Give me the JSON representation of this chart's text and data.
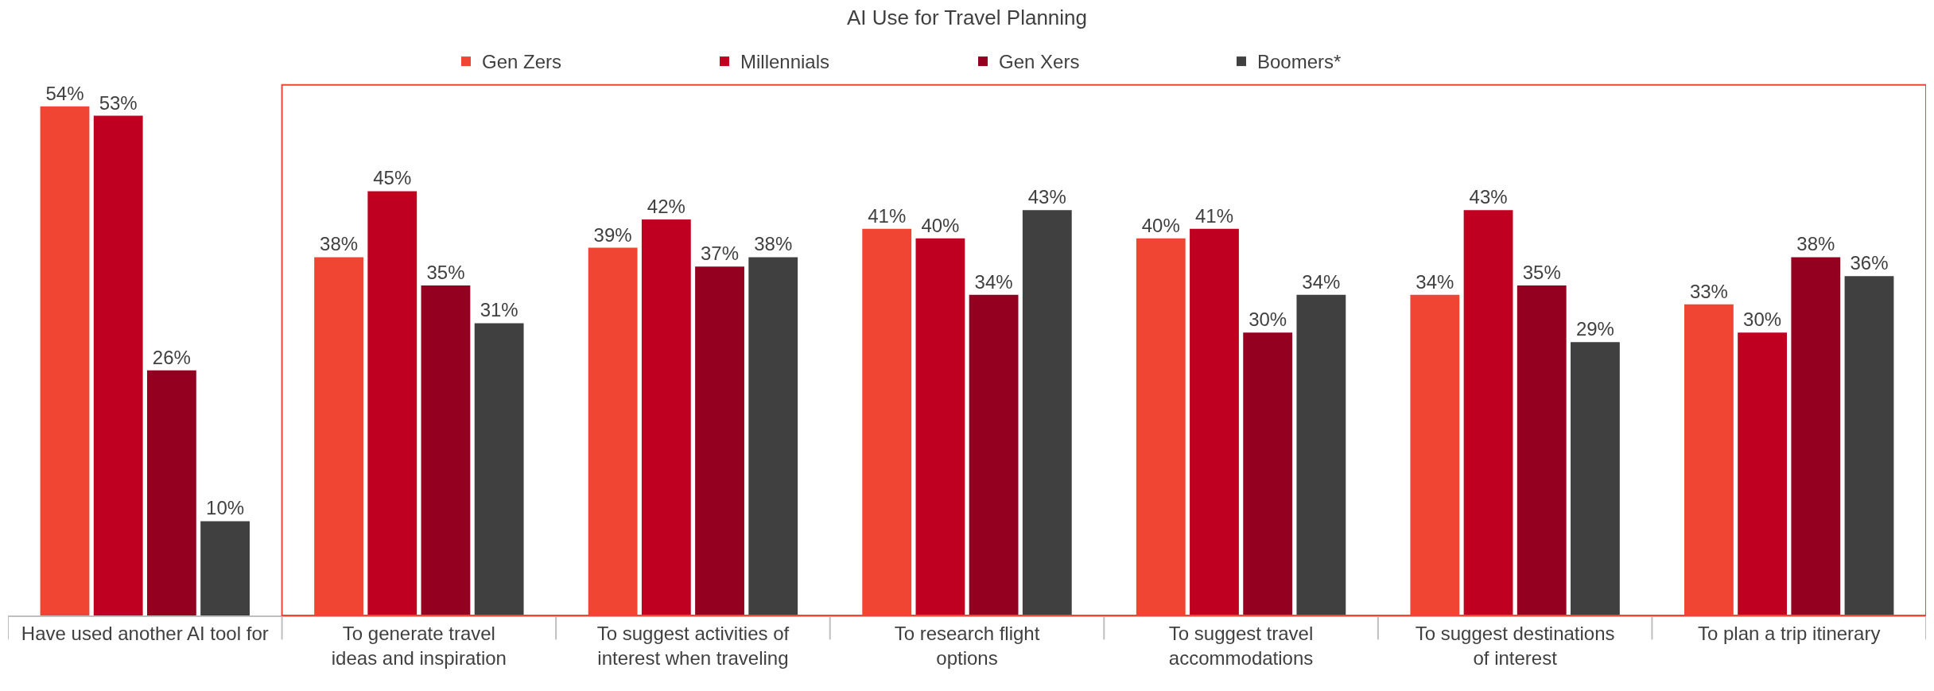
{
  "chart_data": {
    "type": "bar",
    "title": "AI Use for Travel Planning",
    "categories": [
      "Have used another AI tool for",
      "To generate travel\nideas and inspiration",
      "To suggest activities of\ninterest when traveling",
      "To research flight\noptions",
      "To suggest travel\naccommodations",
      "To suggest destinations\nof interest",
      "To plan a trip itinerary"
    ],
    "series": [
      {
        "name": "Gen Zers",
        "color": "#f04533",
        "values": [
          54,
          38,
          39,
          41,
          40,
          34,
          33
        ],
        "value_labels": [
          "54%",
          "38%",
          "39%",
          "41%",
          "40%",
          "34%",
          "33%"
        ]
      },
      {
        "name": "Millennials",
        "color": "#c00020",
        "values": [
          53,
          45,
          42,
          40,
          41,
          43,
          30
        ],
        "value_labels": [
          "53%",
          "45%",
          "42%",
          "40%",
          "41%",
          "43%",
          "30%"
        ]
      },
      {
        "name": "Gen Xers",
        "color": "#940020",
        "values": [
          26,
          35,
          37,
          34,
          30,
          35,
          38
        ],
        "value_labels": [
          "26%",
          "35%",
          "37%",
          "34%",
          "30%",
          "35%",
          "38%"
        ]
      },
      {
        "name": "Boomers*",
        "color": "#404040",
        "values": [
          10,
          31,
          38,
          43,
          34,
          29,
          36
        ],
        "value_labels": [
          "10%",
          "31%",
          "38%",
          "43%",
          "34%",
          "29%",
          "36%"
        ]
      }
    ],
    "legend": "top"
  }
}
